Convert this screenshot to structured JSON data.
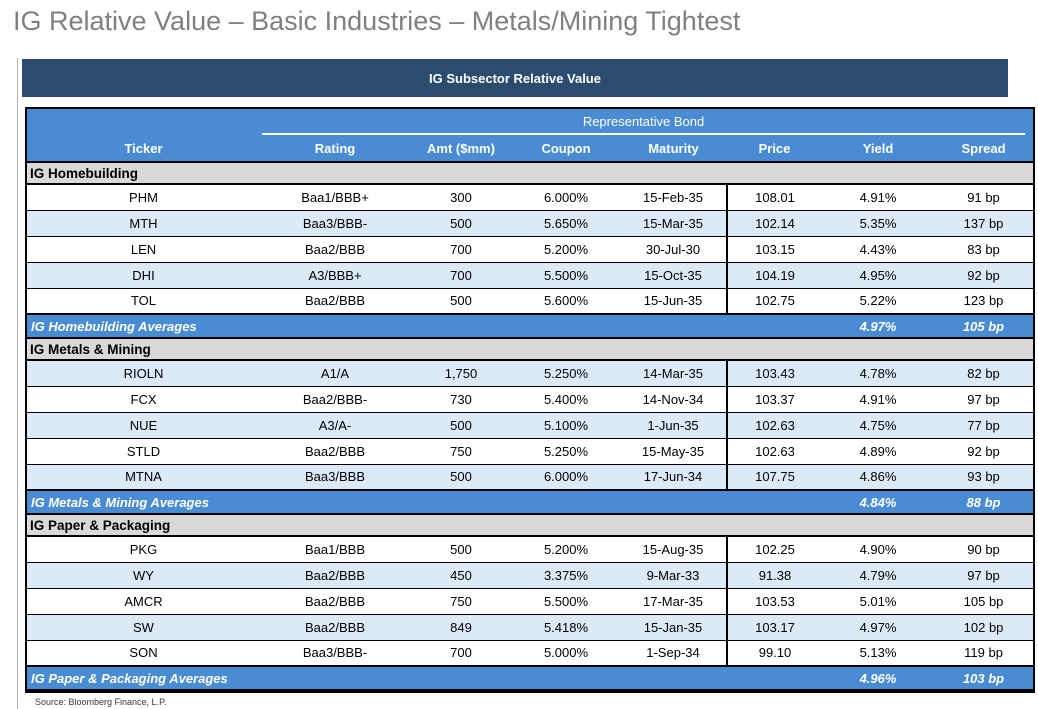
{
  "page": {
    "title": "IG Relative Value – Basic Industries – Metals/Mining Tightest",
    "source": "Source: Bloomberg Finance, L.P."
  },
  "table": {
    "banner": "IG Subsector Relative Value",
    "group_header": "Representative Bond",
    "columns": [
      "Ticker",
      "Rating",
      "Amt ($mm)",
      "Coupon",
      "Maturity",
      "Price",
      "Yield",
      "Spread"
    ],
    "sections": [
      {
        "name": "IG Homebuilding",
        "rows": [
          [
            "PHM",
            "Baa1/BBB+",
            "300",
            "6.000%",
            "15-Feb-35",
            "108.01",
            "4.91%",
            "91 bp"
          ],
          [
            "MTH",
            "Baa3/BBB-",
            "500",
            "5.650%",
            "15-Mar-35",
            "102.14",
            "5.35%",
            "137 bp"
          ],
          [
            "LEN",
            "Baa2/BBB",
            "700",
            "5.200%",
            "30-Jul-30",
            "103.15",
            "4.43%",
            "83 bp"
          ],
          [
            "DHI",
            "A3/BBB+",
            "700",
            "5.500%",
            "15-Oct-35",
            "104.19",
            "4.95%",
            "92 bp"
          ],
          [
            "TOL",
            "Baa2/BBB",
            "500",
            "5.600%",
            "15-Jun-35",
            "102.75",
            "5.22%",
            "123 bp"
          ]
        ],
        "averages": {
          "label": "IG Homebuilding Averages",
          "yield": "4.97%",
          "spread": "105 bp"
        }
      },
      {
        "name": "IG Metals & Mining",
        "rows": [
          [
            "RIOLN",
            "A1/A",
            "1,750",
            "5.250%",
            "14-Mar-35",
            "103.43",
            "4.78%",
            "82 bp"
          ],
          [
            "FCX",
            "Baa2/BBB-",
            "730",
            "5.400%",
            "14-Nov-34",
            "103.37",
            "4.91%",
            "97 bp"
          ],
          [
            "NUE",
            "A3/A-",
            "500",
            "5.100%",
            "1-Jun-35",
            "102.63",
            "4.75%",
            "77 bp"
          ],
          [
            "STLD",
            "Baa2/BBB",
            "750",
            "5.250%",
            "15-May-35",
            "102.63",
            "4.89%",
            "92 bp"
          ],
          [
            "MTNA",
            "Baa3/BBB",
            "500",
            "6.000%",
            "17-Jun-34",
            "107.75",
            "4.86%",
            "93 bp"
          ]
        ],
        "averages": {
          "label": "IG Metals & Mining Averages",
          "yield": "4.84%",
          "spread": "88 bp"
        }
      },
      {
        "name": "IG Paper & Packaging",
        "rows": [
          [
            "PKG",
            "Baa1/BBB",
            "500",
            "5.200%",
            "15-Aug-35",
            "102.25",
            "4.90%",
            "90 bp"
          ],
          [
            "WY",
            "Baa2/BBB",
            "450",
            "3.375%",
            "9-Mar-33",
            "91.38",
            "4.79%",
            "97 bp"
          ],
          [
            "AMCR",
            "Baa2/BBB",
            "750",
            "5.500%",
            "17-Mar-35",
            "103.53",
            "5.01%",
            "105 bp"
          ],
          [
            "SW",
            "Baa2/BBB",
            "849",
            "5.418%",
            "15-Jan-35",
            "103.17",
            "4.97%",
            "102 bp"
          ],
          [
            "SON",
            "Baa3/BBB-",
            "700",
            "5.000%",
            "1-Sep-34",
            "99.10",
            "5.13%",
            "119 bp"
          ]
        ],
        "averages": {
          "label": "IG Paper & Packaging Averages",
          "yield": "4.96%",
          "spread": "103 bp"
        }
      }
    ]
  },
  "colors": {
    "navy": "#2B4B6F",
    "header-blue": "#4A8CD4",
    "zebra-blue": "#DCE9F7",
    "section-gray": "#D9D9D9",
    "title-gray": "#808080"
  }
}
